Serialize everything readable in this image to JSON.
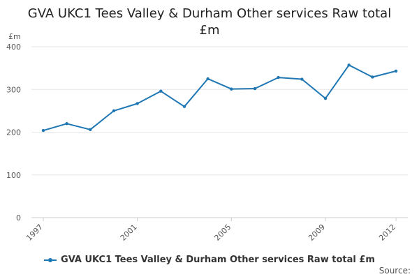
{
  "chart_data": {
    "type": "line",
    "title_lines": [
      "GVA UKC1 Tees Valley & Durham Other services Raw total",
      "£m"
    ],
    "ylabel": "£m",
    "xlabel": "",
    "x": [
      1997,
      1998,
      1999,
      2000,
      2001,
      2002,
      2003,
      2004,
      2005,
      2006,
      2007,
      2008,
      2009,
      2010,
      2011,
      2012
    ],
    "series": [
      {
        "name": "GVA UKC1 Tees Valley & Durham Other services Raw total £m",
        "values": [
          204,
          220,
          206,
          250,
          267,
          296,
          260,
          325,
          301,
          302,
          328,
          324,
          279,
          357,
          329,
          343
        ]
      }
    ],
    "ylim": [
      0,
      400
    ],
    "yticks": [
      0,
      100,
      200,
      300,
      400
    ],
    "xticks": [
      1997,
      2001,
      2005,
      2009,
      2012
    ],
    "grid": "horizontal",
    "legend_position": "bottom",
    "color": "#1f77b4"
  },
  "source_label": "Source:"
}
